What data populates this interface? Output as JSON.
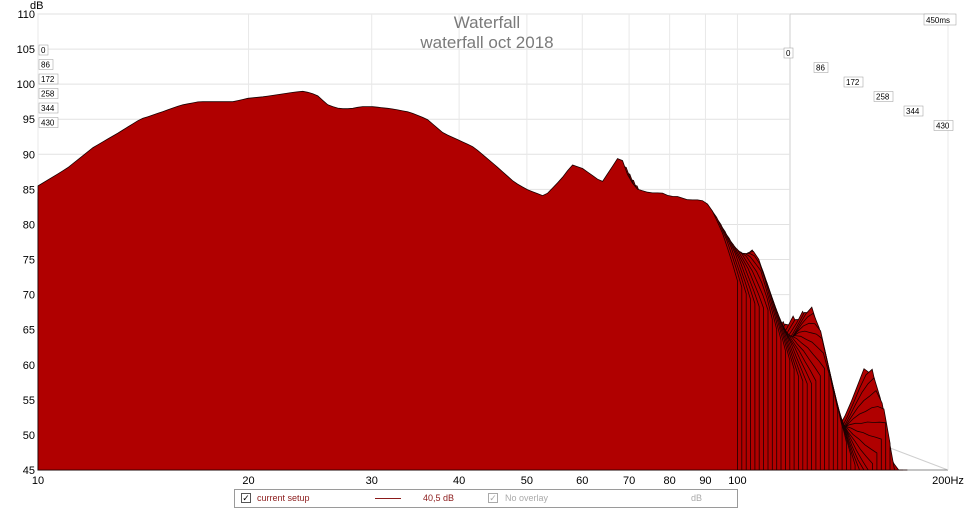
{
  "chart_data": {
    "type": "area",
    "title": "Waterfall",
    "subtitle": "waterfall oct 2018",
    "ylabel": "dB",
    "xunit": "Hz",
    "x_scale": "log",
    "xlim": [
      10,
      200
    ],
    "ylim": [
      45,
      110
    ],
    "x_ticks": [
      10,
      20,
      30,
      40,
      50,
      60,
      70,
      80,
      90,
      100,
      200
    ],
    "x_tick_labels": [
      "10",
      "20",
      "30",
      "40",
      "50",
      "60",
      "70",
      "80",
      "90",
      "100",
      "200Hz"
    ],
    "y_ticks": [
      45,
      50,
      55,
      60,
      65,
      70,
      75,
      80,
      85,
      90,
      95,
      100,
      105,
      110
    ],
    "time_axis_unit": "ms",
    "time_axis_max_label": "450ms",
    "time_slices_ms": [
      0,
      86,
      172,
      258,
      344,
      430
    ],
    "fill_color": "#b00000",
    "outline_color": "#1a0000",
    "slice_count": 40,
    "first_slice_response": {
      "x": [
        10,
        11,
        12,
        13,
        14,
        15,
        16,
        17,
        18,
        19,
        20,
        21,
        22,
        23,
        24,
        25,
        26,
        27,
        28,
        29,
        30,
        32,
        34,
        36,
        38,
        40,
        42,
        45,
        48,
        50,
        53,
        56,
        58,
        60,
        62,
        64,
        66,
        68,
        70,
        72,
        75,
        78,
        80,
        82,
        85,
        88,
        90,
        92,
        95,
        98,
        100
      ],
      "y": [
        85.5,
        88,
        91,
        93,
        95,
        96,
        97,
        97.5,
        97.5,
        97.5,
        98,
        98.2,
        98.5,
        98.8,
        99,
        98.5,
        97,
        96.5,
        96.5,
        96.8,
        96.8,
        96.5,
        96,
        95,
        93,
        92,
        91,
        88.5,
        86,
        85,
        84,
        86.5,
        88.5,
        88,
        87,
        86,
        88,
        90,
        86.5,
        85,
        84.5,
        84.5,
        84,
        84,
        83.5,
        83.5,
        83.3,
        82,
        79,
        75,
        72
      ]
    }
  },
  "legend": {
    "item1_label": "current setup",
    "item1_checked": "✓",
    "item1_value": "40,5 dB",
    "item2_label": "No overlay",
    "item2_checked": "✓",
    "item2_unit": "dB",
    "line_color": "#8b1a1a"
  }
}
